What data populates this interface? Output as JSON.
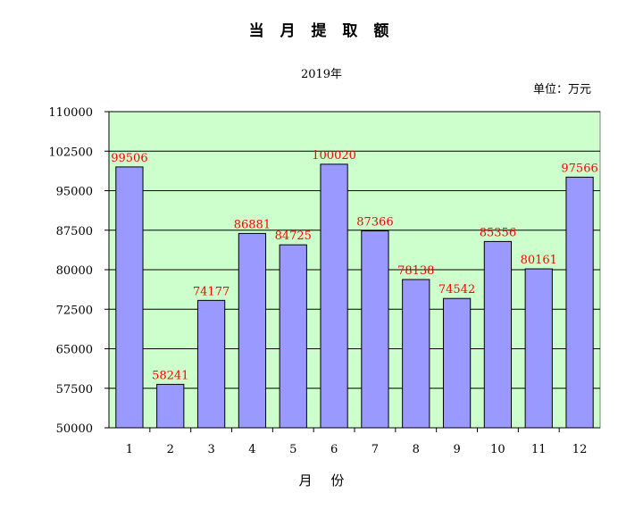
{
  "chart_data": {
    "type": "bar",
    "title": "当 月 提 取 额",
    "subtitle": "2019年",
    "unit": "单位：万元",
    "xlabel": "月 份",
    "ylabel": "",
    "categories": [
      "1",
      "2",
      "3",
      "4",
      "5",
      "6",
      "7",
      "8",
      "9",
      "10",
      "11",
      "12"
    ],
    "values": [
      99506,
      58241,
      74177,
      86881,
      84725,
      100020,
      87366,
      78138,
      74542,
      85356,
      80161,
      97566
    ],
    "ylim": [
      50000,
      110000
    ],
    "yticks": [
      50000,
      57500,
      65000,
      72500,
      80000,
      87500,
      95000,
      102500,
      110000
    ],
    "grid": true,
    "colors": {
      "bar": "#9999ff",
      "bar_border": "#000000",
      "plot_background": "#ccffcc",
      "data_label": "#ff0000"
    }
  }
}
